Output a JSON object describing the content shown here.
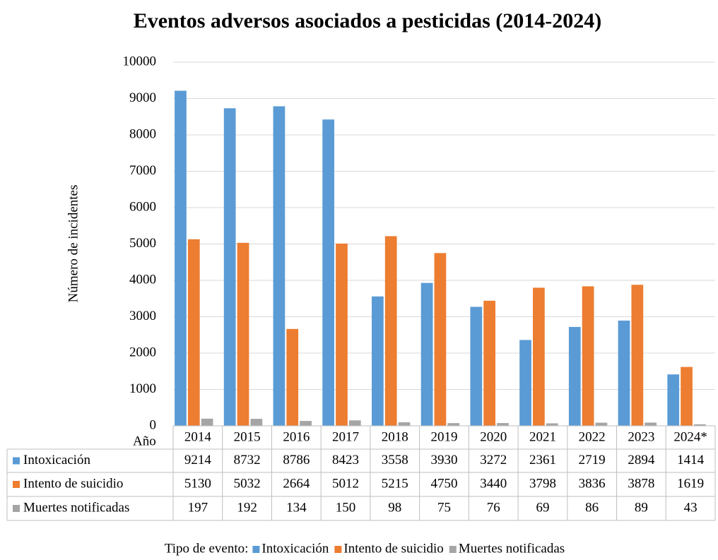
{
  "chart_data": {
    "type": "bar",
    "title": "Eventos adversos asociados a pesticidas (2014-2024)",
    "y_label": "Número de incidentes",
    "x_label": "Año",
    "legend_title": "Tipo de evento:",
    "categories": [
      "2014",
      "2015",
      "2016",
      "2017",
      "2018",
      "2019",
      "2020",
      "2021",
      "2022",
      "2023",
      "2024*"
    ],
    "series": [
      {
        "name": "Intoxicación",
        "color": "#5b9bd5",
        "values": [
          9214,
          8732,
          8786,
          8423,
          3558,
          3930,
          3272,
          2361,
          2719,
          2894,
          1414
        ]
      },
      {
        "name": "Intento de suicidio",
        "color": "#ed7d31",
        "values": [
          5130,
          5032,
          2664,
          5012,
          5215,
          4750,
          3440,
          3798,
          3836,
          3878,
          1619
        ]
      },
      {
        "name": "Muertes notificadas",
        "color": "#a5a5a5",
        "values": [
          197,
          192,
          134,
          150,
          98,
          75,
          76,
          69,
          86,
          89,
          43
        ]
      }
    ],
    "ylim": [
      0,
      10000
    ],
    "yticks": [
      0,
      1000,
      2000,
      3000,
      4000,
      5000,
      6000,
      7000,
      8000,
      9000,
      10000
    ],
    "grid": true,
    "legend": "bottom"
  }
}
